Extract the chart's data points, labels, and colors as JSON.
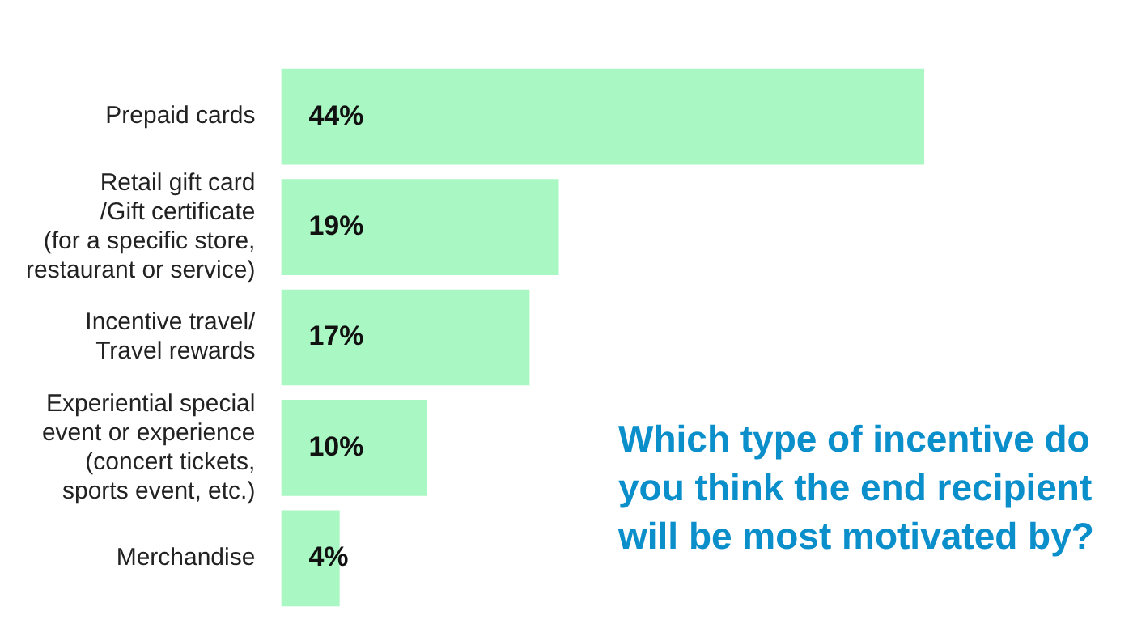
{
  "chart_data": {
    "type": "bar",
    "orientation": "horizontal",
    "title": "Which type of incentive do you think the end recipient will be most motivated by?",
    "categories": [
      "Prepaid cards",
      "Retail gift card\n/Gift certificate\n(for a specific store,\nrestaurant or service)",
      "Incentive travel/\nTravel rewards",
      "Experiential special\nevent or experience\n(concert tickets,\nsports event, etc.)",
      "Merchandise"
    ],
    "values": [
      44,
      19,
      17,
      10,
      4
    ],
    "value_labels": [
      "44%",
      "19%",
      "17%",
      "10%",
      "4%"
    ],
    "color": "#a9f7c2",
    "grid": false,
    "legend": false
  }
}
